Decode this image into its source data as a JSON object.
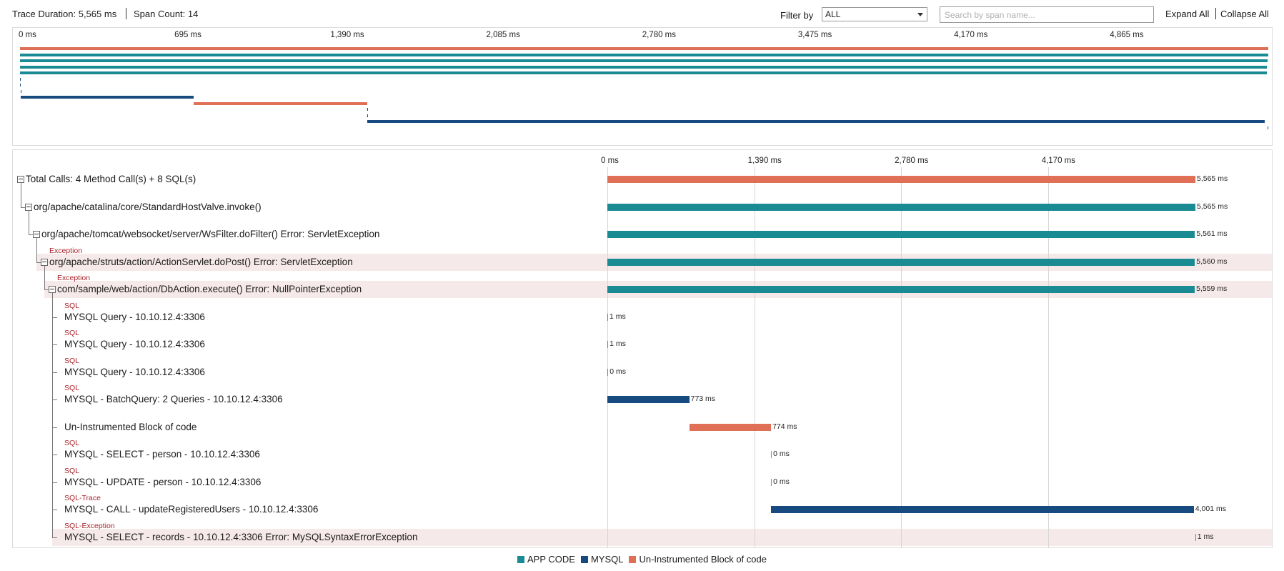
{
  "header": {
    "trace_duration": "Trace Duration: 5,565 ms",
    "span_count": "Span Count: 14",
    "filter_label": "Filter by",
    "filter_value": "ALL",
    "search_placeholder": "Search by span name...",
    "expand_all": "Expand All",
    "collapse_all": "Collapse All"
  },
  "colors": {
    "app_code": "#1a8a93",
    "mysql": "#174a7e",
    "uninstrumented": "#e07055",
    "exception_row": "#f6e9e9",
    "type_label": "#a8242a"
  },
  "overview": {
    "ticks": [
      "0 ms",
      "695 ms",
      "1,390 ms",
      "2,085 ms",
      "2,780 ms",
      "3,475 ms",
      "4,170 ms",
      "4,865 ms"
    ]
  },
  "detail": {
    "ticks": [
      "0 ms",
      "1,390 ms",
      "2,780 ms",
      "4,170 ms"
    ],
    "total_ms": 5565,
    "rows": [
      {
        "label": "Total Calls: 4 Method Call(s) + 8 SQL(s)",
        "type": "",
        "category": "uninstrumented",
        "start_ms": 0,
        "dur_ms": 5565,
        "dur_label": "5,565 ms",
        "depth": 0,
        "toggle": true,
        "highlight": false
      },
      {
        "label": "org/apache/catalina/core/StandardHostValve.invoke()",
        "type": "",
        "category": "app_code",
        "start_ms": 0,
        "dur_ms": 5565,
        "dur_label": "5,565 ms",
        "depth": 1,
        "toggle": true,
        "highlight": false
      },
      {
        "label": "org/apache/tomcat/websocket/server/WsFilter.doFilter() Error: ServletException",
        "type": "",
        "category": "app_code",
        "start_ms": 0,
        "dur_ms": 5561,
        "dur_label": "5,561 ms",
        "depth": 2,
        "toggle": true,
        "highlight": false
      },
      {
        "label": "org/apache/struts/action/ActionServlet.doPost() Error: ServletException",
        "type": "Exception",
        "category": "app_code",
        "start_ms": 0,
        "dur_ms": 5560,
        "dur_label": "5,560 ms",
        "depth": 3,
        "toggle": true,
        "highlight": true
      },
      {
        "label": "com/sample/web/action/DbAction.execute() Error: NullPointerException",
        "type": "Exception",
        "category": "app_code",
        "start_ms": 0,
        "dur_ms": 5559,
        "dur_label": "5,559 ms",
        "depth": 4,
        "toggle": true,
        "highlight": true
      },
      {
        "label": "MYSQL Query - 10.10.12.4:3306",
        "type": "SQL",
        "category": "mysql",
        "start_ms": 0,
        "dur_ms": 1,
        "dur_label": "1 ms",
        "depth": 5,
        "toggle": false,
        "highlight": false
      },
      {
        "label": "MYSQL Query - 10.10.12.4:3306",
        "type": "SQL",
        "category": "mysql",
        "start_ms": 1,
        "dur_ms": 1,
        "dur_label": "1 ms",
        "depth": 5,
        "toggle": false,
        "highlight": false
      },
      {
        "label": "MYSQL Query - 10.10.12.4:3306",
        "type": "SQL",
        "category": "mysql",
        "start_ms": 2,
        "dur_ms": 0,
        "dur_label": "0 ms",
        "depth": 5,
        "toggle": false,
        "highlight": false
      },
      {
        "label": "MYSQL - BatchQuery: 2 Queries - 10.10.12.4:3306",
        "type": "SQL",
        "category": "mysql",
        "start_ms": 2,
        "dur_ms": 773,
        "dur_label": "773 ms",
        "depth": 5,
        "toggle": false,
        "highlight": false
      },
      {
        "label": "Un-Instrumented Block of code",
        "type": "",
        "category": "uninstrumented",
        "start_ms": 775,
        "dur_ms": 774,
        "dur_label": "774 ms",
        "depth": 5,
        "toggle": false,
        "highlight": false
      },
      {
        "label": "MYSQL - SELECT - person - 10.10.12.4:3306",
        "type": "SQL",
        "category": "mysql",
        "start_ms": 1549,
        "dur_ms": 0,
        "dur_label": "0 ms",
        "depth": 5,
        "toggle": false,
        "highlight": false
      },
      {
        "label": "MYSQL - UPDATE - person - 10.10.12.4:3306",
        "type": "SQL",
        "category": "mysql",
        "start_ms": 1549,
        "dur_ms": 0,
        "dur_label": "0 ms",
        "depth": 5,
        "toggle": false,
        "highlight": false
      },
      {
        "label": "MYSQL - CALL - updateRegisteredUsers - 10.10.12.4:3306",
        "type": "SQL-Trace",
        "category": "mysql",
        "start_ms": 1549,
        "dur_ms": 4001,
        "dur_label": "4,001 ms",
        "depth": 5,
        "toggle": false,
        "highlight": false
      },
      {
        "label": "MYSQL - SELECT - records - 10.10.12.4:3306 Error: MySQLSyntaxErrorException",
        "type": "SQL-Exception",
        "category": "mysql",
        "start_ms": 5563,
        "dur_ms": 1,
        "dur_label": "1 ms",
        "depth": 5,
        "toggle": false,
        "highlight": true
      }
    ]
  },
  "legend": [
    {
      "label": "APP CODE",
      "category": "app_code"
    },
    {
      "label": "MYSQL",
      "category": "mysql"
    },
    {
      "label": "Un-Instrumented Block of code",
      "category": "uninstrumented"
    }
  ]
}
